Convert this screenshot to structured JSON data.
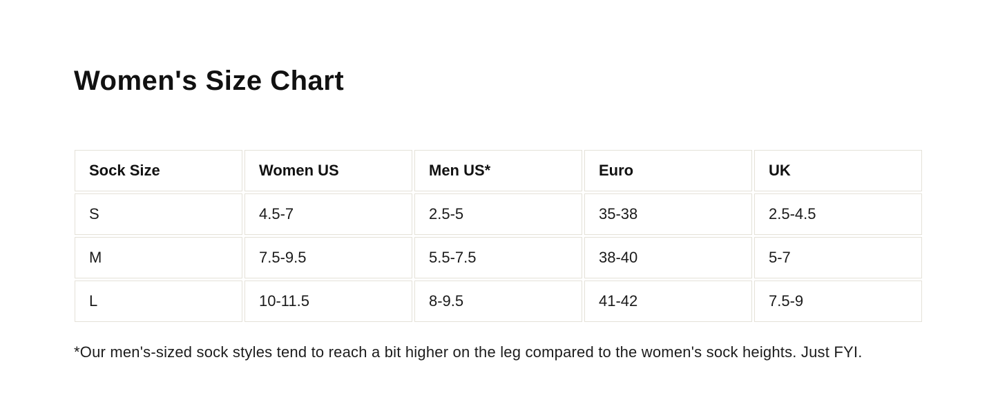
{
  "colors": {
    "background": "#ffffff",
    "text": "#1a1a1a",
    "table_border": "#e4e1d8"
  },
  "chart_data": {
    "type": "table",
    "title": "Women's Size Chart",
    "columns": [
      "Sock Size",
      "Women US",
      "Men US*",
      "Euro",
      "UK"
    ],
    "rows": [
      [
        "S",
        "4.5-7",
        "2.5-5",
        "35-38",
        "2.5-4.5"
      ],
      [
        "M",
        "7.5-9.5",
        "5.5-7.5",
        "38-40",
        "5-7"
      ],
      [
        "L",
        "10-11.5",
        "8-9.5",
        "41-42",
        "7.5-9"
      ]
    ],
    "footnote": "*Our men's-sized sock styles tend to reach a bit higher on the leg compared to the women's sock heights. Just FYI."
  }
}
